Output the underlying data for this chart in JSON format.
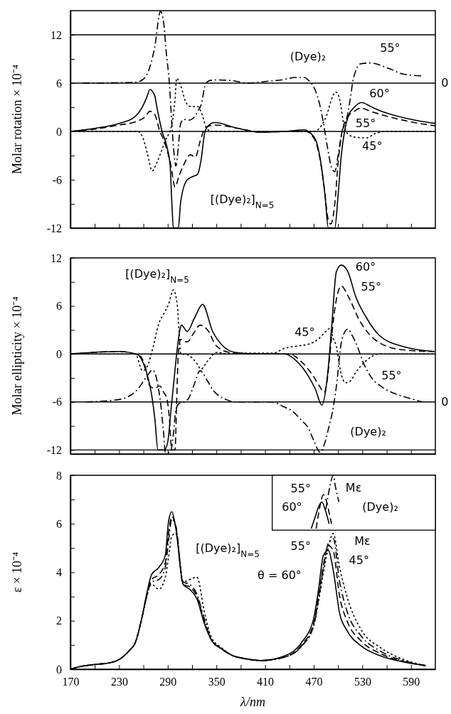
{
  "chart_data": [
    {
      "type": "line",
      "ylabel": "Molar rotation × 10⁻⁴",
      "xlim": [
        170,
        620
      ],
      "ylim": [
        -12,
        15
      ],
      "xticks": [
        170,
        {
          "value": 200,
          "label": null
        },
        230,
        {
          "value": 260,
          "label": null
        },
        290,
        {
          "value": 320,
          "label": null
        },
        350,
        {
          "value": 380,
          "label": null
        },
        410,
        {
          "value": 440,
          "label": null
        },
        470,
        {
          "value": 500,
          "label": null
        },
        530,
        {
          "value": 560,
          "label": null
        },
        590
      ],
      "yticks": [
        -12,
        {
          "value": -9,
          "label": null
        },
        -6,
        {
          "value": -3,
          "label": null
        },
        0,
        {
          "value": 3,
          "label": null
        },
        6,
        {
          "value": 9,
          "label": null
        },
        12
      ],
      "tick_labels": "y",
      "series": [
        {
          "color": "#000000",
          "line_style": "solid",
          "x": [
            170,
            201,
            230,
            248,
            259,
            264,
            268,
            274,
            277,
            283,
            289,
            293,
            295,
            297,
            303,
            306,
            314,
            321,
            327,
            331,
            336,
            342,
            348,
            376,
            405,
            434,
            458,
            467,
            474,
            479,
            484,
            488,
            496,
            500,
            504,
            508,
            513,
            520,
            529,
            540,
            551,
            566,
            581,
            600,
            620
          ],
          "values": [
            0,
            0.4,
            1.0,
            1.7,
            3.1,
            4.2,
            5.2,
            4.4,
            2.8,
            0,
            -1.9,
            -4.3,
            -8.7,
            -12,
            -12,
            -8.7,
            -6,
            -5.6,
            -5.3,
            -3.6,
            0,
            0.9,
            1.1,
            0.4,
            -0.1,
            0,
            0.2,
            -0.3,
            -1.5,
            -4,
            -8,
            -12,
            -12,
            -8,
            -3,
            0,
            2,
            3,
            3.6,
            3.1,
            2.6,
            2.1,
            1.7,
            1.3,
            1.0
          ]
        },
        {
          "color": "#000000",
          "line_style": "dashed",
          "x": [
            170,
            201,
            230,
            250,
            262,
            268,
            274,
            280,
            286,
            294,
            299,
            304,
            309,
            318,
            324,
            330,
            336,
            342,
            348,
            376,
            405,
            434,
            460,
            470,
            477,
            483,
            488,
            491,
            496,
            500,
            505,
            512,
            520,
            528,
            540,
            560,
            580,
            600,
            620
          ],
          "values": [
            0,
            0.3,
            0.8,
            1.2,
            1.8,
            2.5,
            2.1,
            0.1,
            -1.3,
            -4.3,
            -6.9,
            -5.5,
            -4.3,
            -2.9,
            -3.2,
            -1.2,
            0.4,
            0.7,
            0.8,
            0.4,
            -0.1,
            0,
            0,
            -0.8,
            -3,
            -7,
            -11,
            -11.5,
            -9,
            -4,
            0,
            1.8,
            2.5,
            2.9,
            2.5,
            1.9,
            1.4,
            1.0,
            0.7
          ]
        },
        {
          "color": "#000000",
          "line_style": "dotted",
          "x": [
            170,
            253,
            259,
            265,
            271,
            276,
            282,
            288,
            294,
            299,
            301,
            306,
            312,
            318,
            327,
            332,
            338,
            344,
            380,
            420,
            450,
            470,
            480,
            486,
            492,
            497,
            502,
            507,
            512,
            520,
            535,
            545,
            560,
            620
          ],
          "values": [
            0,
            0,
            -0.7,
            -2.8,
            -4.9,
            -4,
            -2.5,
            -0.9,
            0.4,
            4,
            6.6,
            5.7,
            3.7,
            3.1,
            3.1,
            2.2,
            0.4,
            0,
            0,
            0,
            0,
            0,
            0.8,
            2,
            4,
            4.9,
            4,
            1,
            -0.3,
            -0.7,
            -0.8,
            -0.3,
            0,
            0
          ]
        },
        {
          "color": "#000000",
          "line_style": "dashdot",
          "x": [
            185,
            250,
            260,
            268,
            274,
            281,
            285,
            288,
            292,
            295,
            298,
            300,
            303,
            306,
            310,
            316,
            322,
            327,
            332,
            336,
            341,
            350,
            370,
            390,
            410,
            430,
            448,
            458,
            465,
            472,
            477,
            481,
            487,
            492,
            496,
            500,
            505,
            510,
            515,
            519,
            528,
            540,
            563,
            581,
            604
          ],
          "values": [
            6,
            6.1,
            6.5,
            8,
            10.5,
            14.9,
            13.5,
            10,
            6,
            1,
            -3,
            -4.3,
            -2,
            1,
            1.5,
            1.4,
            1.7,
            2.5,
            3.6,
            5.7,
            6.3,
            6.4,
            6.3,
            6.0,
            6.2,
            6.4,
            6.7,
            6.7,
            6.2,
            5.1,
            3.5,
            1.6,
            -2,
            -4.5,
            -5,
            -3,
            0,
            1.3,
            4,
            6.6,
            8.4,
            8.5,
            7.8,
            7.1,
            6.9
          ]
        }
      ],
      "ref_lines": [
        {
          "axis": "y",
          "value": 0
        },
        {
          "axis": "y",
          "value": 6
        },
        {
          "axis": "y",
          "value": 12
        }
      ],
      "annotations": [
        "(Dye)₂",
        "[(Dye)₂]$_{N=5}$",
        "55°",
        "60°",
        "55°",
        "45°",
        "0"
      ]
    },
    {
      "type": "line",
      "ylabel": "Molar ellipticity × 10⁻⁴",
      "xlim": [
        170,
        620
      ],
      "ylim": [
        -12.5,
        12
      ],
      "xticks": [
        170,
        {
          "value": 200,
          "label": null
        },
        230,
        {
          "value": 260,
          "label": null
        },
        290,
        {
          "value": 320,
          "label": null
        },
        350,
        {
          "value": 380,
          "label": null
        },
        410,
        {
          "value": 440,
          "label": null
        },
        470,
        {
          "value": 500,
          "label": null
        },
        530,
        {
          "value": 560,
          "label": null
        },
        590
      ],
      "yticks": [
        -12,
        {
          "value": -9,
          "label": null
        },
        -6,
        {
          "value": -3,
          "label": null
        },
        0,
        {
          "value": 3,
          "label": null
        },
        6,
        {
          "value": 9,
          "label": null
        },
        12
      ],
      "tick_labels": "y",
      "series": [
        {
          "color": "#000000",
          "line_style": "solid",
          "x": [
            170,
            230,
            253,
            260,
            265,
            270,
            274,
            278,
            286,
            290,
            294,
            298,
            301,
            305,
            307,
            314,
            323,
            333,
            345,
            359,
            373,
            400,
            434,
            449,
            463,
            472,
            480,
            487,
            492,
            498,
            504,
            512,
            522,
            534,
            551,
            581,
            619
          ],
          "values": [
            0,
            0.3,
            -0.1,
            -1.2,
            -2.7,
            -5,
            -8,
            -12,
            -12,
            -11,
            -7,
            -3,
            0,
            3,
            3.6,
            2.8,
            4.5,
            6.2,
            2.9,
            0.9,
            0.2,
            0,
            0,
            -0.9,
            -2.7,
            -4.4,
            -6.4,
            -2.7,
            3.2,
            10.3,
            11.1,
            10.3,
            7.1,
            4.7,
            2.3,
            0.9,
            0.3
          ]
        },
        {
          "color": "#000000",
          "line_style": "dashed",
          "x": [
            170,
            230,
            255,
            262,
            268,
            274,
            280,
            285,
            289,
            292,
            295,
            299,
            301,
            303,
            306,
            314,
            322,
            330,
            339,
            350,
            366,
            400,
            440,
            455,
            469,
            477,
            483,
            487,
            490,
            496,
            504,
            512,
            527,
            551,
            581,
            619
          ],
          "values": [
            0,
            0.3,
            -0.2,
            -1.5,
            -4,
            -4.3,
            -4,
            -4.8,
            -5.6,
            -8,
            -12,
            -12,
            -6,
            0,
            1.8,
            1.5,
            2.6,
            3.6,
            3.0,
            1.0,
            0.2,
            0,
            0,
            -1,
            -2.7,
            -4,
            -4.8,
            -3,
            0,
            5.6,
            8.5,
            7.3,
            4.1,
            1.4,
            0.5,
            0.3
          ]
        },
        {
          "color": "#000000",
          "line_style": "dotted",
          "x": [
            170,
            250,
            259,
            265,
            272,
            279,
            285,
            291,
            297,
            302,
            304,
            306,
            314,
            326,
            331,
            339,
            351,
            363,
            380,
            420,
            434,
            450,
            463,
            475,
            485,
            490,
            494,
            498,
            503,
            509,
            515,
            522,
            534,
            551,
            620
          ],
          "values": [
            0,
            0,
            -2.1,
            -1.5,
            0.9,
            3.8,
            5.0,
            6.2,
            8.0,
            5.9,
            2.7,
            0,
            -0.1,
            -1.2,
            -1.9,
            -0.9,
            0.2,
            0,
            0.1,
            0.1,
            0.7,
            1.0,
            1.2,
            1.8,
            2.8,
            3.2,
            2,
            0.9,
            -2.1,
            -3.6,
            -3.4,
            -2.3,
            -0.9,
            0,
            0
          ]
        },
        {
          "color": "#000000",
          "line_style": "dashdot",
          "x": [
            189,
            230,
            253,
            265,
            271,
            276,
            281,
            285,
            287,
            293,
            297,
            300,
            304,
            310,
            316,
            322,
            330,
            338,
            345,
            362,
            373,
            400,
            419,
            433,
            443,
            455,
            463,
            470,
            478,
            484,
            489,
            493,
            498,
            504,
            508,
            512,
            518,
            524,
            530,
            536,
            543,
            551,
            562,
            574,
            590,
            604
          ],
          "values": [
            -6,
            -5.7,
            -4.4,
            -2.7,
            -2,
            -3,
            -6,
            -10,
            -12.3,
            -12.3,
            -10,
            -7,
            -6.2,
            -6,
            -5.5,
            -4,
            -2.1,
            -3.2,
            -4.4,
            -5.7,
            -6,
            -6,
            -6,
            -6.6,
            -7.1,
            -8.3,
            -9.2,
            -10.8,
            -12.3,
            -11,
            -9,
            -7.3,
            -4,
            1.4,
            2.7,
            3.1,
            2.2,
            0.9,
            -0.8,
            -2.1,
            -3.2,
            -3.9,
            -4.6,
            -5.1,
            -5.6,
            -6
          ]
        }
      ],
      "ref_lines": [
        {
          "axis": "y",
          "value": 0
        },
        {
          "axis": "y",
          "value": -6
        },
        {
          "axis": "y",
          "value": -12
        }
      ],
      "annotations": [
        "[(Dye)₂]$_{N=5}$",
        "60°",
        "55°",
        "45°",
        "55°",
        "(Dye)₂",
        "0"
      ]
    },
    {
      "type": "line",
      "xlabel": "λ/nm",
      "ylabel": "ε × 10⁻⁴",
      "xlim": [
        170,
        620
      ],
      "ylim": [
        0,
        8
      ],
      "xticks": [
        170,
        {
          "value": 200,
          "label": null
        },
        230,
        {
          "value": 260,
          "label": null
        },
        290,
        {
          "value": 320,
          "label": null
        },
        350,
        {
          "value": 380,
          "label": null
        },
        410,
        {
          "value": 440,
          "label": null
        },
        470,
        {
          "value": 500,
          "label": null
        },
        530,
        {
          "value": 560,
          "label": null
        },
        590
      ],
      "yticks": [
        0,
        {
          "value": 1,
          "label": null
        },
        2,
        {
          "value": 3,
          "label": null
        },
        4,
        {
          "value": 5,
          "label": null
        },
        6,
        {
          "value": 7,
          "label": null
        },
        8
      ],
      "x": [
        170,
        181,
        201,
        216,
        230,
        242,
        250,
        258,
        264,
        270,
        279,
        287,
        291,
        295,
        300,
        309,
        317,
        326,
        335,
        344,
        356,
        371,
        383,
        405,
        434,
        455,
        470,
        476,
        482,
        488,
        494,
        502,
        511,
        529,
        552,
        581,
        608
      ],
      "series": [
        {
          "color": "#000000",
          "line_style": "solid",
          "values": [
            0,
            0.1,
            0.2,
            0.25,
            0.4,
            0.75,
            1.1,
            2.1,
            3.1,
            3.9,
            4.2,
            4.7,
            6.1,
            6.5,
            5.8,
            3.5,
            3.3,
            2.9,
            1.9,
            1.2,
            0.85,
            0.55,
            0.45,
            0.36,
            0.55,
            1.1,
            2.1,
            3.3,
            4.7,
            4.9,
            4.1,
            2.3,
            1.6,
            0.95,
            0.56,
            0.3,
            0.15
          ]
        },
        {
          "color": "#000000",
          "line_style": "dashed",
          "values": [
            0,
            0.1,
            0.2,
            0.25,
            0.4,
            0.75,
            1.1,
            2.1,
            3.0,
            3.7,
            3.9,
            4.4,
            5.6,
            6.3,
            5.9,
            3.5,
            3.4,
            3.0,
            2.0,
            1.2,
            0.85,
            0.55,
            0.45,
            0.36,
            0.5,
            1.0,
            1.9,
            3.0,
            4.3,
            5.1,
            4.9,
            3.0,
            2.0,
            1.15,
            0.65,
            0.32,
            0.15
          ]
        },
        {
          "color": "#000000",
          "line_style": "dashdot",
          "values": [
            0,
            0.1,
            0.2,
            0.25,
            0.4,
            0.75,
            1.1,
            2.1,
            3.0,
            3.6,
            3.7,
            4.2,
            5.3,
            6.2,
            5.9,
            3.6,
            3.5,
            3.1,
            2.1,
            1.2,
            0.85,
            0.55,
            0.45,
            0.36,
            0.5,
            0.95,
            1.8,
            2.9,
            4.2,
            5.2,
            5.4,
            3.6,
            2.4,
            1.35,
            0.75,
            0.35,
            0.15
          ]
        },
        {
          "color": "#000000",
          "line_style": "dotted",
          "values": [
            0,
            0.1,
            0.2,
            0.25,
            0.4,
            0.75,
            1.1,
            2.1,
            3.0,
            3.5,
            3.3,
            3.8,
            4.6,
            5.5,
            5.6,
            3.6,
            3.7,
            3.8,
            2.4,
            1.3,
            0.9,
            0.55,
            0.45,
            0.36,
            0.5,
            0.95,
            1.8,
            2.8,
            4.0,
            5.0,
            5.6,
            4.2,
            3.0,
            1.6,
            0.9,
            0.4,
            0.15
          ]
        },
        {
          "color": "#000000",
          "line_style": "solid",
          "x": [
            467,
            472,
            476,
            480,
            484,
            489
          ],
          "values": [
            5.8,
            6.3,
            6.7,
            6.9,
            6.6,
            6.0
          ]
        },
        {
          "color": "#000000",
          "line_style": "dashed",
          "x": [
            473,
            477,
            482,
            486,
            490,
            492
          ],
          "values": [
            5.8,
            6.6,
            7.2,
            6.9,
            6.3,
            6.0
          ]
        },
        {
          "color": "#000000",
          "line_style": "dashdot",
          "x": [
            485,
            488,
            491,
            494,
            497,
            501
          ],
          "values": [
            6.6,
            7.2,
            7.7,
            8.0,
            7.5,
            6.9
          ]
        }
      ],
      "annotations": [
        "[(Dye)₂]$_{N=5}$",
        "55°",
        "60°",
        "Mε",
        "(Dye)₂",
        "55°",
        "Mε",
        "θ = 60°",
        "45°"
      ]
    }
  ]
}
